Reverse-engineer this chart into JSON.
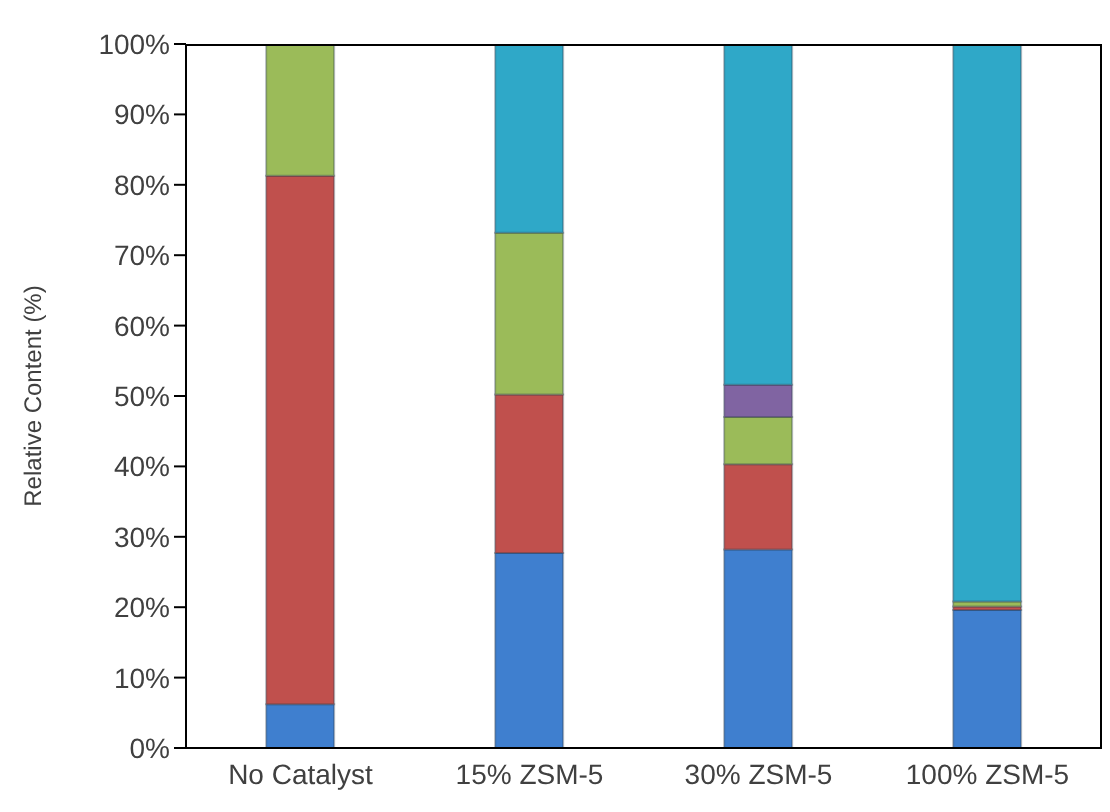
{
  "chart_data": {
    "type": "bar",
    "stacked": true,
    "ylabel": "Relative Content (%)",
    "categories": [
      "No Catalyst",
      "15% ZSM-5",
      "30% ZSM-5",
      "100% ZSM-5"
    ],
    "series": [
      {
        "color": "#3f7fcf",
        "values": [
          6.2,
          27.7,
          28.2,
          19.6
        ]
      },
      {
        "color": "#c0504d",
        "values": [
          75.1,
          22.5,
          12.1,
          0.5
        ]
      },
      {
        "color": "#9bbb59",
        "values": [
          18.7,
          23.0,
          6.7,
          0.7
        ]
      },
      {
        "color": "#8064a2",
        "values": [
          0,
          0,
          4.6,
          0
        ]
      },
      {
        "color": "#2fa8c8",
        "values": [
          0,
          26.8,
          48.4,
          79.2
        ]
      }
    ],
    "ylim": [
      0,
      100
    ],
    "yticks": [
      {
        "value": 0,
        "label": "0%"
      },
      {
        "value": 10,
        "label": "10%"
      },
      {
        "value": 20,
        "label": "20%"
      },
      {
        "value": 30,
        "label": "30%"
      },
      {
        "value": 40,
        "label": "40%"
      },
      {
        "value": 50,
        "label": "50%"
      },
      {
        "value": 60,
        "label": "60%"
      },
      {
        "value": 70,
        "label": "70%"
      },
      {
        "value": 80,
        "label": "80%"
      },
      {
        "value": 90,
        "label": "90%"
      },
      {
        "value": 100,
        "label": "100%"
      }
    ],
    "grid": false,
    "legend": false
  }
}
